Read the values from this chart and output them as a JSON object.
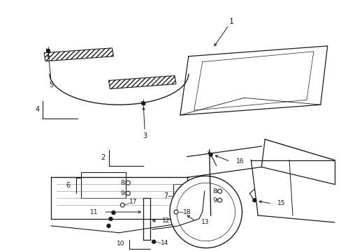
{
  "bg_color": "#ffffff",
  "dark": "#1a1a1a",
  "fig_w": 4.89,
  "fig_h": 3.6,
  "dpi": 100,
  "xlim": [
    0,
    489
  ],
  "ylim": [
    0,
    360
  ]
}
